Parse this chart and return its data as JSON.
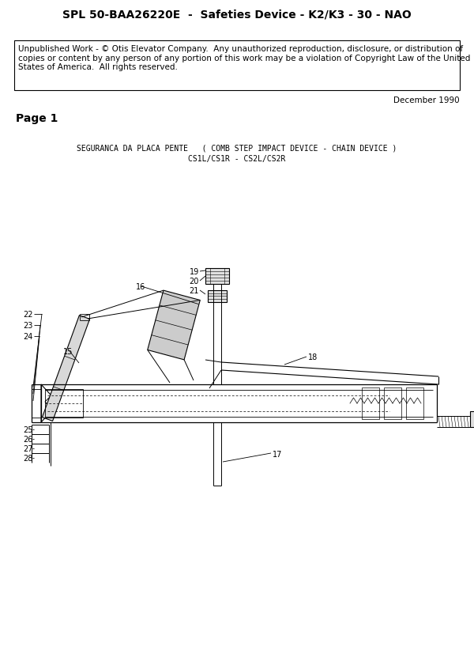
{
  "title": "SPL 50-BAA26220E  -  Safeties Device - K2/K3 - 30 - NAO",
  "copyright_text": "Unpublished Work - © Otis Elevator Company.  Any unauthorized reproduction, disclosure, or distribution of\ncopies or content by any person of any portion of this work may be a violation of Copyright Law of the United\nStates of America.  All rights reserved.",
  "date_text": "December 1990",
  "page_label": "Page 1",
  "diagram_title_line1": "SEGURANCA DA PLACA PENTE   ( COMB STEP IMPACT DEVICE - CHAIN DEVICE )",
  "diagram_title_line2": "CS1L/CS1R - CS2L/CS2R",
  "background_color": "#ffffff",
  "title_fontsize": 10,
  "copyright_fontsize": 7.5,
  "date_fontsize": 7.5,
  "page_fontsize": 10,
  "diagram_title_fontsize": 7,
  "label_fontsize": 7
}
